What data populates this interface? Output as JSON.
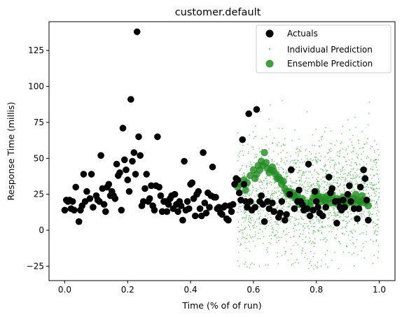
{
  "chart_data": {
    "type": "scatter",
    "title": "customer.default",
    "xlabel": "Time (% of of run)",
    "ylabel": "Response Time (millis)",
    "xlim": [
      -0.05,
      1.05
    ],
    "ylim": [
      -35,
      145
    ],
    "xticks": [
      0.0,
      0.2,
      0.4,
      0.6,
      0.8,
      1.0
    ],
    "xtick_labels": [
      "0.0",
      "0.2",
      "0.4",
      "0.6",
      "0.8",
      "1.0"
    ],
    "yticks": [
      -25,
      0,
      25,
      50,
      75,
      100,
      125
    ],
    "ytick_labels": [
      "−25",
      "0",
      "25",
      "50",
      "75",
      "100",
      "125"
    ],
    "legend_position": "top-right",
    "colors": {
      "actuals": "#000000",
      "individual": "#2ca02c",
      "ensemble": "#228b22"
    },
    "series": [
      {
        "name": "Actuals",
        "marker": "circle",
        "points": [
          [
            0.0,
            14
          ],
          [
            0.005,
            21
          ],
          [
            0.01,
            20
          ],
          [
            0.015,
            21
          ],
          [
            0.02,
            15
          ],
          [
            0.025,
            20
          ],
          [
            0.03,
            14
          ],
          [
            0.035,
            30
          ],
          [
            0.045,
            6
          ],
          [
            0.05,
            14
          ],
          [
            0.055,
            17
          ],
          [
            0.06,
            39
          ],
          [
            0.065,
            20
          ],
          [
            0.07,
            27
          ],
          [
            0.08,
            22
          ],
          [
            0.085,
            39
          ],
          [
            0.09,
            16
          ],
          [
            0.1,
            24
          ],
          [
            0.105,
            21
          ],
          [
            0.11,
            20
          ],
          [
            0.115,
            52
          ],
          [
            0.12,
            29
          ],
          [
            0.125,
            18
          ],
          [
            0.13,
            13
          ],
          [
            0.135,
            30
          ],
          [
            0.14,
            32
          ],
          [
            0.145,
            24
          ],
          [
            0.15,
            27
          ],
          [
            0.155,
            24
          ],
          [
            0.16,
            22
          ],
          [
            0.165,
            46
          ],
          [
            0.17,
            38
          ],
          [
            0.175,
            40
          ],
          [
            0.18,
            14
          ],
          [
            0.185,
            71
          ],
          [
            0.19,
            49
          ],
          [
            0.195,
            42
          ],
          [
            0.2,
            35
          ],
          [
            0.205,
            27
          ],
          [
            0.21,
            91
          ],
          [
            0.215,
            48
          ],
          [
            0.22,
            54
          ],
          [
            0.225,
            39
          ],
          [
            0.23,
            138
          ],
          [
            0.235,
            65
          ],
          [
            0.24,
            52
          ],
          [
            0.245,
            17
          ],
          [
            0.25,
            20
          ],
          [
            0.255,
            29
          ],
          [
            0.26,
            39
          ],
          [
            0.265,
            20
          ],
          [
            0.27,
            22
          ],
          [
            0.275,
            31
          ],
          [
            0.28,
            17
          ],
          [
            0.285,
            14
          ],
          [
            0.29,
            31
          ],
          [
            0.295,
            65
          ],
          [
            0.3,
            30
          ],
          [
            0.305,
            24
          ],
          [
            0.31,
            13
          ],
          [
            0.315,
            20
          ],
          [
            0.32,
            20
          ],
          [
            0.325,
            13
          ],
          [
            0.33,
            18
          ],
          [
            0.335,
            22
          ],
          [
            0.34,
            24
          ],
          [
            0.345,
            15
          ],
          [
            0.35,
            25
          ],
          [
            0.355,
            18
          ],
          [
            0.36,
            13
          ],
          [
            0.365,
            20
          ],
          [
            0.37,
            17
          ],
          [
            0.375,
            7
          ],
          [
            0.38,
            48
          ],
          [
            0.385,
            14
          ],
          [
            0.39,
            20
          ],
          [
            0.395,
            15
          ],
          [
            0.4,
            32
          ],
          [
            0.405,
            33
          ],
          [
            0.41,
            22
          ],
          [
            0.415,
            10
          ],
          [
            0.42,
            25
          ],
          [
            0.425,
            27
          ],
          [
            0.43,
            15
          ],
          [
            0.435,
            10
          ],
          [
            0.44,
            54
          ],
          [
            0.445,
            19
          ],
          [
            0.45,
            12
          ],
          [
            0.455,
            26
          ],
          [
            0.46,
            16
          ],
          [
            0.465,
            24
          ],
          [
            0.47,
            44
          ],
          [
            0.475,
            23
          ],
          [
            0.48,
            23
          ],
          [
            0.485,
            15
          ],
          [
            0.49,
            16
          ],
          [
            0.495,
            12
          ],
          [
            0.5,
            11
          ],
          [
            0.505,
            16
          ],
          [
            0.51,
            17
          ],
          [
            0.515,
            8
          ],
          [
            0.52,
            7
          ],
          [
            0.525,
            17
          ],
          [
            0.53,
            13
          ],
          [
            0.535,
            18
          ],
          [
            0.54,
            32
          ],
          [
            0.545,
            36
          ],
          [
            0.55,
            35
          ],
          [
            0.555,
            26
          ],
          [
            0.56,
            21
          ],
          [
            0.565,
            63
          ],
          [
            0.57,
            32
          ],
          [
            0.575,
            20
          ],
          [
            0.58,
            16
          ],
          [
            0.585,
            81
          ],
          [
            0.59,
            20
          ],
          [
            0.595,
            14
          ],
          [
            0.605,
            16
          ],
          [
            0.61,
            84
          ],
          [
            0.62,
            20
          ],
          [
            0.625,
            24
          ],
          [
            0.63,
            18
          ],
          [
            0.635,
            6
          ],
          [
            0.645,
            20
          ],
          [
            0.65,
            15
          ],
          [
            0.66,
            19
          ],
          [
            0.665,
            13
          ],
          [
            0.68,
            9
          ],
          [
            0.685,
            12
          ],
          [
            0.69,
            20
          ],
          [
            0.7,
            7
          ],
          [
            0.705,
            11
          ],
          [
            0.715,
            25
          ],
          [
            0.72,
            42
          ],
          [
            0.73,
            15
          ],
          [
            0.74,
            20
          ],
          [
            0.745,
            28
          ],
          [
            0.75,
            20
          ],
          [
            0.755,
            18
          ],
          [
            0.76,
            14
          ],
          [
            0.77,
            15
          ],
          [
            0.775,
            46
          ],
          [
            0.78,
            10
          ],
          [
            0.79,
            14
          ],
          [
            0.795,
            27
          ],
          [
            0.8,
            20
          ],
          [
            0.805,
            16
          ],
          [
            0.81,
            12
          ],
          [
            0.82,
            10
          ],
          [
            0.83,
            16
          ],
          [
            0.84,
            37
          ],
          [
            0.845,
            26
          ],
          [
            0.85,
            29
          ],
          [
            0.86,
            20
          ],
          [
            0.865,
            5
          ],
          [
            0.87,
            20
          ],
          [
            0.875,
            16
          ],
          [
            0.88,
            14
          ],
          [
            0.885,
            21
          ],
          [
            0.89,
            16
          ],
          [
            0.9,
            25
          ],
          [
            0.905,
            31
          ],
          [
            0.91,
            20
          ],
          [
            0.92,
            15
          ],
          [
            0.93,
            8
          ],
          [
            0.935,
            15
          ],
          [
            0.94,
            30
          ],
          [
            0.95,
            42
          ],
          [
            0.955,
            36
          ],
          [
            0.96,
            21
          ],
          [
            0.965,
            7
          ]
        ]
      },
      {
        "name": "Individual Prediction",
        "marker": "dot",
        "generated": {
          "x_range": [
            0.55,
            1.0
          ],
          "count": 1800,
          "seed": 7,
          "center": 24,
          "spread": 20,
          "y_min": -27,
          "y_max": 100
        }
      },
      {
        "name": "Ensemble Prediction",
        "marker": "circle",
        "points": [
          [
            0.55,
            30
          ],
          [
            0.56,
            32
          ],
          [
            0.57,
            35
          ],
          [
            0.575,
            28
          ],
          [
            0.58,
            33
          ],
          [
            0.59,
            38
          ],
          [
            0.6,
            42
          ],
          [
            0.605,
            36
          ],
          [
            0.61,
            39
          ],
          [
            0.615,
            45
          ],
          [
            0.62,
            42
          ],
          [
            0.625,
            48
          ],
          [
            0.63,
            45
          ],
          [
            0.635,
            54
          ],
          [
            0.64,
            47
          ],
          [
            0.645,
            43
          ],
          [
            0.65,
            40
          ],
          [
            0.655,
            42
          ],
          [
            0.66,
            44
          ],
          [
            0.665,
            41
          ],
          [
            0.67,
            39
          ],
          [
            0.675,
            36
          ],
          [
            0.68,
            37
          ],
          [
            0.685,
            35
          ],
          [
            0.69,
            32
          ],
          [
            0.695,
            34
          ],
          [
            0.7,
            29
          ],
          [
            0.705,
            27
          ],
          [
            0.71,
            25
          ],
          [
            0.715,
            27
          ],
          [
            0.72,
            24
          ],
          [
            0.725,
            26
          ],
          [
            0.73,
            24
          ],
          [
            0.735,
            22
          ],
          [
            0.74,
            25
          ],
          [
            0.745,
            18
          ],
          [
            0.75,
            20
          ],
          [
            0.755,
            22
          ],
          [
            0.76,
            17
          ],
          [
            0.765,
            15
          ],
          [
            0.77,
            19
          ],
          [
            0.775,
            15
          ],
          [
            0.78,
            17
          ],
          [
            0.785,
            20
          ],
          [
            0.79,
            22
          ],
          [
            0.795,
            25
          ],
          [
            0.8,
            27
          ],
          [
            0.805,
            24
          ],
          [
            0.81,
            22
          ],
          [
            0.815,
            20
          ],
          [
            0.82,
            23
          ],
          [
            0.825,
            21
          ],
          [
            0.83,
            20
          ],
          [
            0.835,
            24
          ],
          [
            0.84,
            22
          ],
          [
            0.845,
            19
          ],
          [
            0.85,
            25
          ],
          [
            0.855,
            21
          ],
          [
            0.86,
            19
          ],
          [
            0.865,
            22
          ],
          [
            0.87,
            20
          ],
          [
            0.875,
            21
          ],
          [
            0.88,
            19
          ],
          [
            0.885,
            23
          ],
          [
            0.89,
            20
          ],
          [
            0.895,
            18
          ],
          [
            0.9,
            21
          ],
          [
            0.905,
            23
          ],
          [
            0.91,
            20
          ],
          [
            0.915,
            19
          ],
          [
            0.92,
            22
          ],
          [
            0.925,
            25
          ],
          [
            0.93,
            21
          ],
          [
            0.935,
            18
          ],
          [
            0.94,
            20
          ],
          [
            0.945,
            24
          ],
          [
            0.95,
            21
          ],
          [
            0.955,
            19
          ],
          [
            0.96,
            20
          ],
          [
            0.965,
            17
          ]
        ]
      }
    ]
  }
}
